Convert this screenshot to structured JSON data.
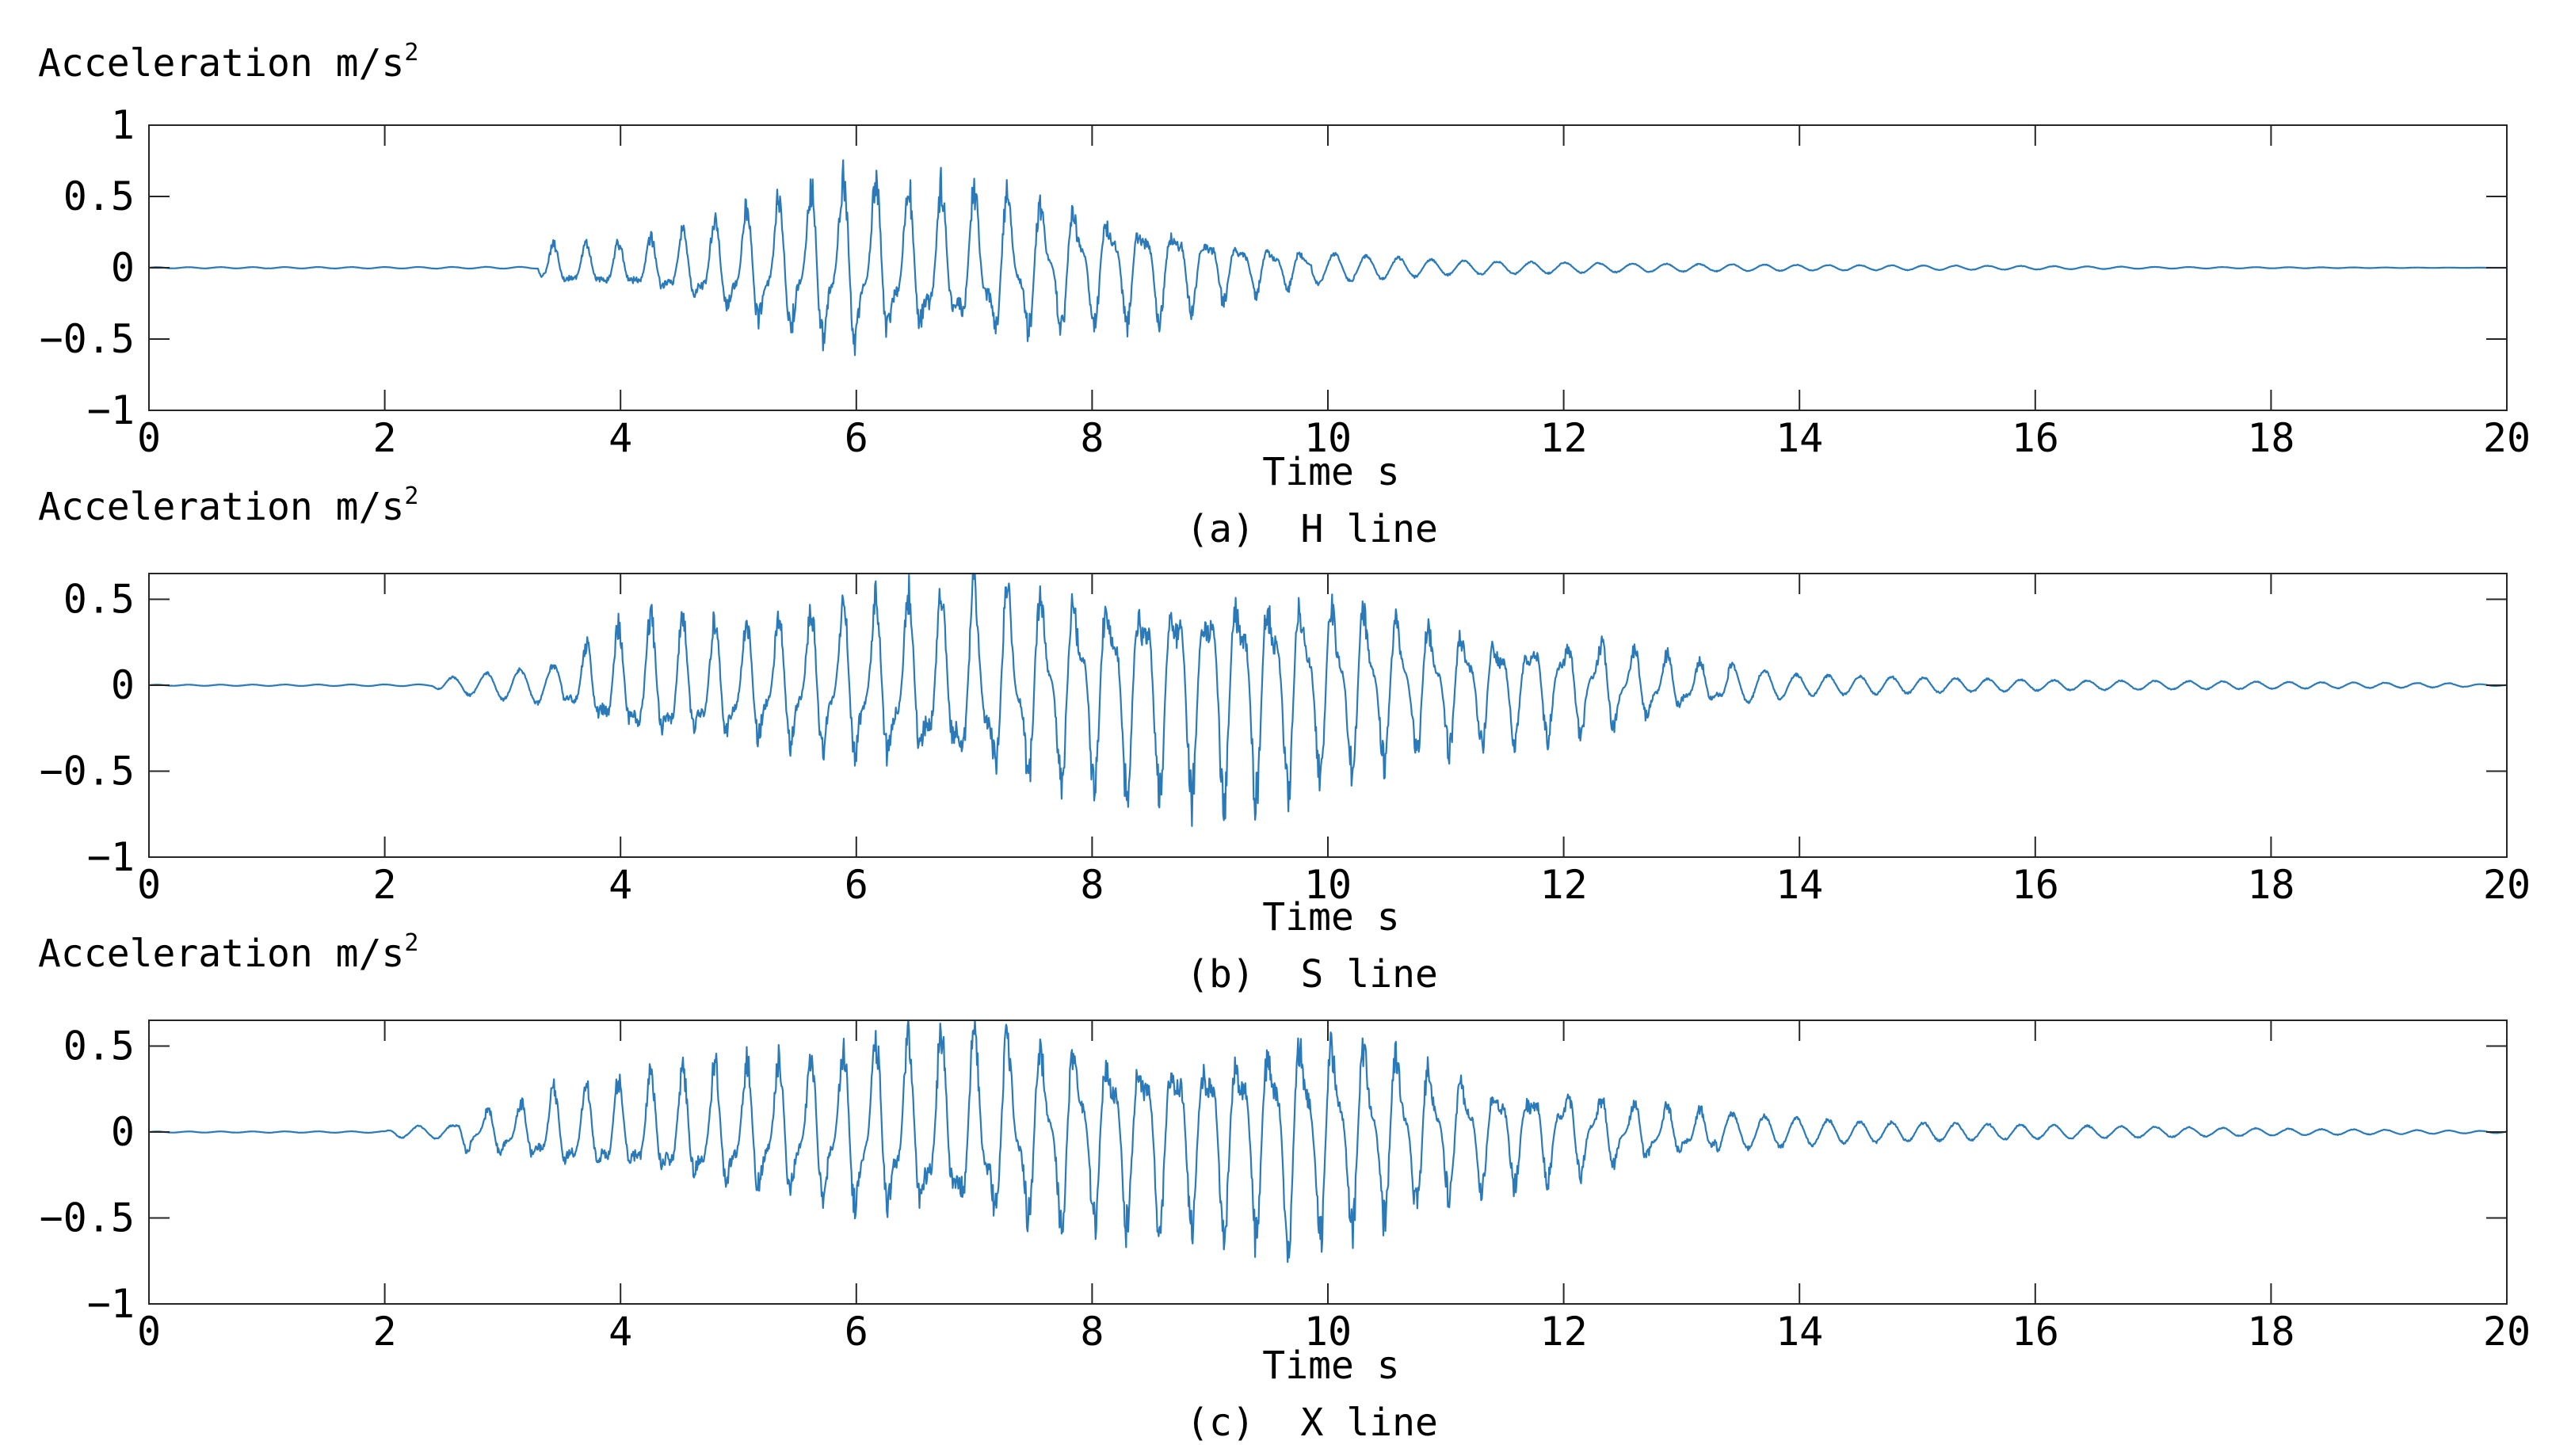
{
  "chart_data": [
    {
      "type": "line",
      "ylabel": "Acceleration m/s",
      "ylabel_sup": "2",
      "xlabel": "Time s",
      "caption": "(a)  H line",
      "xlim": [
        0,
        20
      ],
      "ylim": [
        -1,
        1
      ],
      "xticks": [
        "0",
        "2",
        "4",
        "6",
        "8",
        "10",
        "12",
        "14",
        "16",
        "18",
        "20"
      ],
      "yticks": [
        {
          "v": 1,
          "label": "1"
        },
        {
          "v": 0.5,
          "label": "0.5"
        },
        {
          "v": 0,
          "label": "0"
        },
        {
          "v": -0.5,
          "label": "-0.5"
        },
        {
          "v": -1,
          "label": "-1"
        }
      ],
      "grid": false,
      "series": [
        {
          "color": "#2a7ab9",
          "onset": 3.35,
          "tail_end": 17.0,
          "envelope": [
            [
              0,
              0.004
            ],
            [
              3.3,
              0.006
            ],
            [
              3.35,
              0.16
            ],
            [
              4.0,
              0.17
            ],
            [
              4.5,
              0.25
            ],
            [
              5.0,
              0.42
            ],
            [
              5.8,
              0.66
            ],
            [
              6.5,
              0.58
            ],
            [
              7.5,
              0.52
            ],
            [
              8.0,
              0.45
            ],
            [
              8.7,
              0.35
            ],
            [
              9.3,
              0.2
            ],
            [
              10.0,
              0.1
            ],
            [
              11.0,
              0.05
            ],
            [
              12.5,
              0.03
            ],
            [
              14.0,
              0.02
            ],
            [
              16.0,
              0.012
            ],
            [
              17.0,
              0.006
            ],
            [
              20.0,
              0.0
            ]
          ]
        }
      ]
    },
    {
      "type": "line",
      "ylabel": "Acceleration m/s",
      "ylabel_sup": "2",
      "xlabel": "Time s",
      "caption": "(b)  S line",
      "xlim": [
        0,
        20
      ],
      "ylim": [
        -1,
        0.65
      ],
      "xticks": [
        "0",
        "2",
        "4",
        "6",
        "8",
        "10",
        "12",
        "14",
        "16",
        "18",
        "20"
      ],
      "yticks": [
        {
          "v": 0.5,
          "label": "0.5"
        },
        {
          "v": 0,
          "label": "0"
        },
        {
          "v": -0.5,
          "label": "-0.5"
        },
        {
          "v": -1,
          "label": "-1"
        }
      ],
      "grid": false,
      "series": [
        {
          "color": "#2a7ab9",
          "onset": 2.45,
          "tail_end": 19.5,
          "envelope": [
            [
              0,
              0.003
            ],
            [
              2.4,
              0.005
            ],
            [
              2.5,
              0.04
            ],
            [
              3.0,
              0.08
            ],
            [
              3.5,
              0.12
            ],
            [
              3.8,
              0.3
            ],
            [
              4.2,
              0.42
            ],
            [
              5.0,
              0.38
            ],
            [
              6.0,
              0.5
            ],
            [
              7.0,
              0.6
            ],
            [
              8.0,
              0.6
            ],
            [
              9.2,
              0.7
            ],
            [
              10.0,
              0.58
            ],
            [
              10.8,
              0.42
            ],
            [
              11.5,
              0.32
            ],
            [
              12.3,
              0.3
            ],
            [
              13.0,
              0.16
            ],
            [
              14.0,
              0.06
            ],
            [
              16.0,
              0.03
            ],
            [
              18.0,
              0.02
            ],
            [
              19.5,
              0.012
            ],
            [
              20.0,
              0.002
            ]
          ]
        }
      ]
    },
    {
      "type": "line",
      "ylabel": "Acceleration m/s",
      "ylabel_sup": "2",
      "xlabel": "Time s",
      "caption": "(c)  X line",
      "xlim": [
        0,
        20
      ],
      "ylim": [
        -1,
        0.65
      ],
      "xticks": [
        "0",
        "2",
        "4",
        "6",
        "8",
        "10",
        "12",
        "14",
        "16",
        "18",
        "20"
      ],
      "yticks": [
        {
          "v": 0.5,
          "label": "0.5"
        },
        {
          "v": 0,
          "label": "0"
        },
        {
          "v": -0.5,
          "label": "-0.5"
        },
        {
          "v": -1,
          "label": "-1"
        }
      ],
      "grid": false,
      "series": [
        {
          "color": "#2a7ab9",
          "onset": 2.6,
          "tail_end": 20.0,
          "envelope": [
            [
              0,
              0.003
            ],
            [
              2.0,
              0.004
            ],
            [
              2.1,
              0.03
            ],
            [
              2.6,
              0.04
            ],
            [
              2.65,
              0.12
            ],
            [
              3.2,
              0.18
            ],
            [
              3.4,
              0.26
            ],
            [
              4.0,
              0.3
            ],
            [
              4.8,
              0.4
            ],
            [
              5.5,
              0.45
            ],
            [
              6.0,
              0.55
            ],
            [
              7.0,
              0.62
            ],
            [
              8.0,
              0.55
            ],
            [
              9.0,
              0.58
            ],
            [
              9.8,
              0.68
            ],
            [
              10.5,
              0.55
            ],
            [
              11.2,
              0.35
            ],
            [
              12.0,
              0.28
            ],
            [
              12.5,
              0.2
            ],
            [
              13.5,
              0.1
            ],
            [
              14.5,
              0.06
            ],
            [
              16.0,
              0.04
            ],
            [
              18.0,
              0.02
            ],
            [
              20.0,
              0.005
            ]
          ]
        }
      ]
    }
  ]
}
